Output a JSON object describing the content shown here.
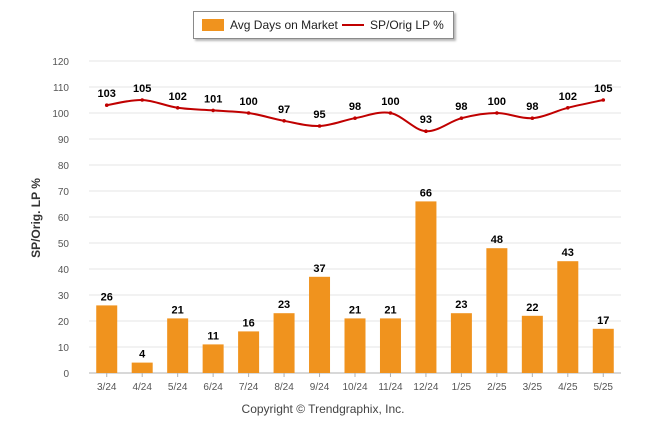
{
  "legend": {
    "bar_label": "Avg Days on Market",
    "line_label": "SP/Orig LP %"
  },
  "copyright": "Copyright © Trendgraphix, Inc.",
  "colors": {
    "bar": "#F0931E",
    "line": "#C00000",
    "grid": "#e6e6e6"
  },
  "chart_data": {
    "type": "bar",
    "ylabel": "SP/Orig. LP %",
    "xlabel": "",
    "ylim": [
      0,
      120
    ],
    "yticks": [
      0,
      10,
      20,
      30,
      40,
      50,
      60,
      70,
      80,
      90,
      100,
      110,
      120
    ],
    "grid": true,
    "legend_position": "top-center",
    "categories": [
      "3/24",
      "4/24",
      "5/24",
      "6/24",
      "7/24",
      "8/24",
      "9/24",
      "10/24",
      "11/24",
      "12/24",
      "1/25",
      "2/25",
      "3/25",
      "4/25",
      "5/25"
    ],
    "series": [
      {
        "name": "Avg Days on Market",
        "type": "bar",
        "values": [
          26,
          4,
          21,
          11,
          16,
          23,
          37,
          21,
          21,
          66,
          23,
          48,
          22,
          43,
          17
        ]
      },
      {
        "name": "SP/Orig LP %",
        "type": "line",
        "values": [
          103,
          105,
          102,
          101,
          100,
          97,
          95,
          98,
          100,
          93,
          98,
          100,
          98,
          102,
          105
        ]
      }
    ]
  }
}
